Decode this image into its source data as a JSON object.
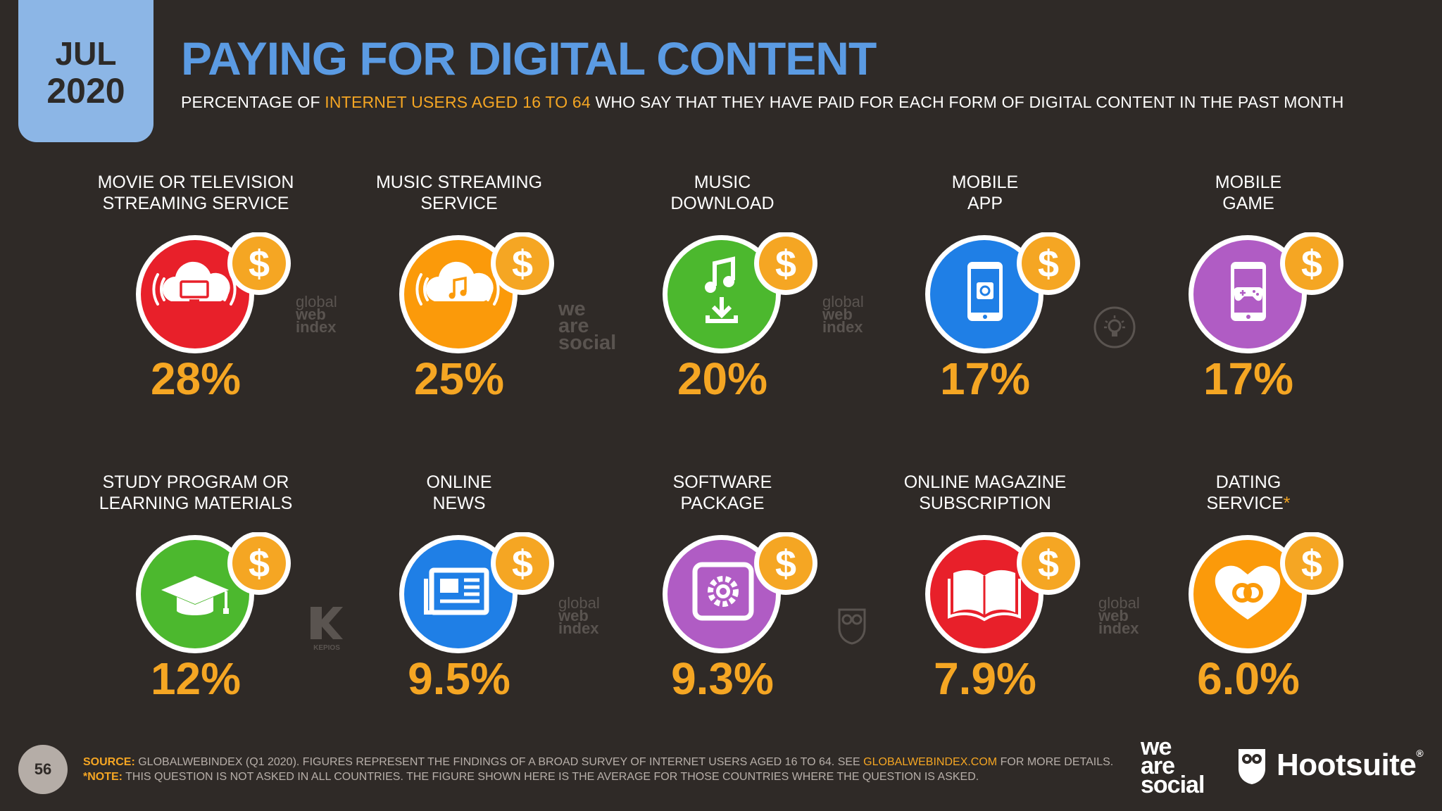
{
  "badge": {
    "month": "JUL",
    "year": "2020"
  },
  "header": {
    "title": "PAYING FOR DIGITAL CONTENT",
    "subtitle_pre": "PERCENTAGE OF",
    "subtitle_highlight": "INTERNET USERS AGED 16 TO 64",
    "subtitle_post": "WHO SAY THAT THEY HAVE PAID FOR EACH FORM OF DIGITAL CONTENT IN THE PAST MONTH"
  },
  "colors": {
    "background": "#2f2a27",
    "title": "#5b9be3",
    "accent": "#f5a623",
    "red": "#e8202a",
    "orange": "#fb9a0a",
    "green": "#4cb82e",
    "blue": "#1f7fe6",
    "purple": "#b05cc4"
  },
  "chart_data": {
    "type": "table",
    "unit": "%",
    "categories": [
      "MOVIE OR TELEVISION STREAMING SERVICE",
      "MUSIC STREAMING SERVICE",
      "MUSIC DOWNLOAD",
      "MOBILE APP",
      "MOBILE GAME",
      "STUDY PROGRAM OR LEARNING MATERIALS",
      "ONLINE NEWS",
      "SOFTWARE PACKAGE",
      "ONLINE MAGAZINE SUBSCRIPTION",
      "DATING SERVICE*"
    ],
    "values": [
      28,
      25,
      20,
      17,
      17,
      12,
      9.5,
      9.3,
      7.9,
      6.0
    ],
    "items": [
      {
        "line1": "MOVIE OR TELEVISION",
        "line2": "STREAMING SERVICE",
        "value_label": "28%",
        "value": 28,
        "color": "#e8202a",
        "icon": "cloud-tv-icon"
      },
      {
        "line1": "MUSIC STREAMING",
        "line2": "SERVICE",
        "value_label": "25%",
        "value": 25,
        "color": "#fb9a0a",
        "icon": "cloud-music-icon"
      },
      {
        "line1": "MUSIC",
        "line2": "DOWNLOAD",
        "value_label": "20%",
        "value": 20,
        "color": "#4cb82e",
        "icon": "music-download-icon"
      },
      {
        "line1": "MOBILE",
        "line2": "APP",
        "value_label": "17%",
        "value": 17,
        "color": "#1f7fe6",
        "icon": "mobile-app-icon"
      },
      {
        "line1": "MOBILE",
        "line2": "GAME",
        "value_label": "17%",
        "value": 17,
        "color": "#b05cc4",
        "icon": "mobile-game-icon"
      },
      {
        "line1": "STUDY PROGRAM OR",
        "line2": "LEARNING MATERIALS",
        "value_label": "12%",
        "value": 12,
        "color": "#4cb82e",
        "icon": "graduation-cap-icon"
      },
      {
        "line1": "ONLINE",
        "line2": "NEWS",
        "value_label": "9.5%",
        "value": 9.5,
        "color": "#1f7fe6",
        "icon": "newspaper-icon"
      },
      {
        "line1": "SOFTWARE",
        "line2": "PACKAGE",
        "value_label": "9.3%",
        "value": 9.3,
        "color": "#b05cc4",
        "icon": "software-gear-icon"
      },
      {
        "line1": "ONLINE MAGAZINE",
        "line2": "SUBSCRIPTION",
        "value_label": "7.9%",
        "value": 7.9,
        "color": "#e8202a",
        "icon": "open-book-icon"
      },
      {
        "line1": "DATING",
        "line2": "SERVICE",
        "asterisk": "*",
        "value_label": "6.0%",
        "value": 6.0,
        "color": "#fb9a0a",
        "icon": "heart-rings-icon"
      }
    ]
  },
  "watermarks": {
    "gwi": [
      "global",
      "web",
      "index"
    ],
    "was": [
      "we",
      "are",
      "social"
    ],
    "kepios": "KEPIOS"
  },
  "footer": {
    "page_number": "56",
    "source_label": "SOURCE:",
    "source_text": "GLOBALWEBINDEX (Q1 2020). FIGURES REPRESENT THE FINDINGS OF A BROAD SURVEY OF INTERNET USERS AGED 16 TO 64. SEE",
    "source_link": "GLOBALWEBINDEX.COM",
    "source_end": "FOR MORE DETAILS.",
    "note_label": "*NOTE:",
    "note_text": "THIS QUESTION IS NOT ASKED IN ALL COUNTRIES. THE FIGURE SHOWN HERE IS THE AVERAGE FOR THOSE COUNTRIES WHERE THE QUESTION IS ASKED.",
    "logo_was": [
      "we",
      "are",
      "social"
    ],
    "logo_hootsuite": "Hootsuite",
    "logo_hootsuite_mark": "®"
  }
}
